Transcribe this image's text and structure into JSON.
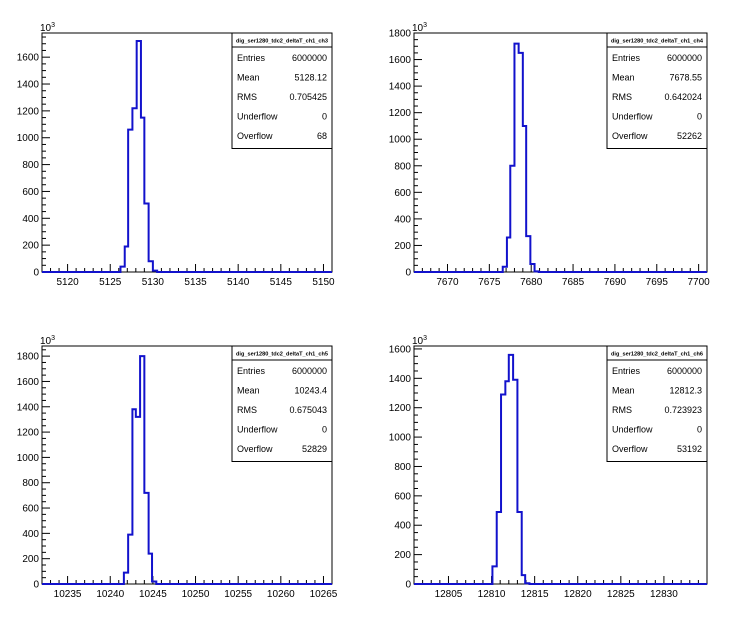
{
  "chart_data": [
    {
      "type": "histogram",
      "title": "dig_ser1280_tdc2_deltaT_ch1_ch3",
      "exponent_label": "10",
      "exponent_power": "3",
      "xlim": [
        5117,
        5151
      ],
      "ylim": [
        0,
        1780
      ],
      "xticks": [
        "5120",
        "5125",
        "5130",
        "5135",
        "5140",
        "5145",
        "5150"
      ],
      "yticks": [
        "0",
        "200",
        "400",
        "600",
        "800",
        "1000",
        "1200",
        "1400",
        "1600"
      ],
      "bins": [
        [
          5126.2,
          5126.7,
          40
        ],
        [
          5126.7,
          5127.1,
          190
        ],
        [
          5127.1,
          5127.6,
          1060
        ],
        [
          5127.6,
          5128.1,
          1220
        ],
        [
          5128.1,
          5128.6,
          1720
        ],
        [
          5128.6,
          5129.0,
          1150
        ],
        [
          5129.0,
          5129.5,
          510
        ],
        [
          5129.5,
          5130.0,
          80
        ],
        [
          5130.0,
          5130.5,
          10
        ]
      ],
      "stats": [
        {
          "label": "Entries",
          "value": "6000000"
        },
        {
          "label": "Mean",
          "value": "5128.12"
        },
        {
          "label": "RMS",
          "value": "0.705425"
        },
        {
          "label": "Underflow",
          "value": "0"
        },
        {
          "label": "Overflow",
          "value": "68"
        }
      ]
    },
    {
      "type": "histogram",
      "title": "dig_ser1280_tdc2_deltaT_ch1_ch4",
      "exponent_label": "10",
      "exponent_power": "3",
      "xlim": [
        7666,
        7701
      ],
      "ylim": [
        0,
        1800
      ],
      "xticks": [
        "7670",
        "7675",
        "7680",
        "7685",
        "7690",
        "7695",
        "7700"
      ],
      "yticks": [
        "0",
        "200",
        "400",
        "600",
        "800",
        "1000",
        "1200",
        "1400",
        "1600",
        "1800"
      ],
      "bins": [
        [
          7676.6,
          7677.1,
          40
        ],
        [
          7677.1,
          7677.5,
          260
        ],
        [
          7677.5,
          7678.0,
          800
        ],
        [
          7678.0,
          7678.5,
          1720
        ],
        [
          7678.5,
          7679.0,
          1650
        ],
        [
          7679.0,
          7679.4,
          1100
        ],
        [
          7679.4,
          7679.9,
          270
        ],
        [
          7679.9,
          7680.4,
          60
        ],
        [
          7680.4,
          7680.9,
          5
        ]
      ],
      "stats": [
        {
          "label": "Entries",
          "value": "6000000"
        },
        {
          "label": "Mean",
          "value": "7678.55"
        },
        {
          "label": "RMS",
          "value": "0.642024"
        },
        {
          "label": "Underflow",
          "value": "0"
        },
        {
          "label": "Overflow",
          "value": "52262"
        }
      ]
    },
    {
      "type": "histogram",
      "title": "dig_ser1280_tdc2_deltaT_ch1_ch5",
      "exponent_label": "10",
      "exponent_power": "3",
      "xlim": [
        10232,
        10266
      ],
      "ylim": [
        0,
        1880
      ],
      "xticks": [
        "10235",
        "10240",
        "10245",
        "10250",
        "10255",
        "10260",
        "10265"
      ],
      "yticks": [
        "0",
        "200",
        "400",
        "600",
        "800",
        "1000",
        "1200",
        "1400",
        "1600",
        "1800"
      ],
      "bins": [
        [
          10241.6,
          10242.1,
          90
        ],
        [
          10242.1,
          10242.6,
          390
        ],
        [
          10242.6,
          10243.0,
          1380
        ],
        [
          10243.0,
          10243.5,
          1320
        ],
        [
          10243.5,
          10244.0,
          1800
        ],
        [
          10244.0,
          10244.5,
          720
        ],
        [
          10244.5,
          10244.9,
          240
        ],
        [
          10244.9,
          10245.4,
          20
        ]
      ],
      "stats": [
        {
          "label": "Entries",
          "value": "6000000"
        },
        {
          "label": "Mean",
          "value": "10243.4"
        },
        {
          "label": "RMS",
          "value": "0.675043"
        },
        {
          "label": "Underflow",
          "value": "0"
        },
        {
          "label": "Overflow",
          "value": "52829"
        }
      ]
    },
    {
      "type": "histogram",
      "title": "dig_ser1280_tdc2_deltaT_ch1_ch6",
      "exponent_label": "10",
      "exponent_power": "3",
      "xlim": [
        12801,
        12835
      ],
      "ylim": [
        0,
        1620
      ],
      "xticks": [
        "12805",
        "12810",
        "12815",
        "12820",
        "12825",
        "12830"
      ],
      "yticks": [
        "0",
        "200",
        "400",
        "600",
        "800",
        "1000",
        "1200",
        "1400",
        "1600"
      ],
      "bins": [
        [
          12810.1,
          12810.6,
          120
        ],
        [
          12810.6,
          12811.1,
          490
        ],
        [
          12811.1,
          12811.6,
          1290
        ],
        [
          12811.6,
          12812.0,
          1380
        ],
        [
          12812.0,
          12812.5,
          1560
        ],
        [
          12812.5,
          12813.0,
          1390
        ],
        [
          12813.0,
          12813.5,
          490
        ],
        [
          12813.5,
          12813.9,
          60
        ],
        [
          12813.9,
          12814.4,
          5
        ]
      ],
      "stats": [
        {
          "label": "Entries",
          "value": "6000000"
        },
        {
          "label": "Mean",
          "value": "12812.3"
        },
        {
          "label": "RMS",
          "value": "0.723923"
        },
        {
          "label": "Underflow",
          "value": "0"
        },
        {
          "label": "Overflow",
          "value": "53192"
        }
      ]
    }
  ],
  "colors": {
    "line": "#1212cc",
    "axis": "#000000",
    "background": "#ffffff"
  }
}
